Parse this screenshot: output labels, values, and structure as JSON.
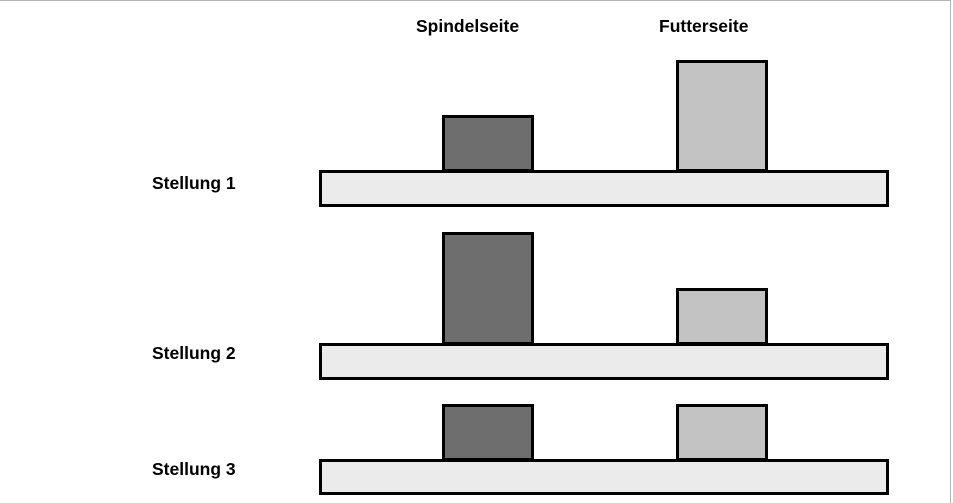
{
  "columns": {
    "spindel": "Spindelseite",
    "futter": "Futterseite"
  },
  "rows": [
    {
      "label": "Stellung 1"
    },
    {
      "label": "Stellung 2"
    },
    {
      "label": "Stellung 3"
    }
  ],
  "colors": {
    "spindel_block": "#6e6e6e",
    "futter_block": "#c3c3c3",
    "bar": "#ebebeb",
    "outline": "#000000"
  }
}
